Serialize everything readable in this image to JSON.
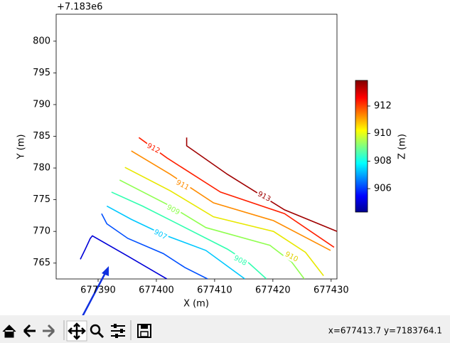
{
  "chart_data": {
    "type": "contour",
    "xlabel": "X (m)",
    "ylabel": "Y (m)",
    "y_offset": "+7.183e6",
    "xlim": [
      677382.8,
      677431.0
    ],
    "ylim": [
      762.5,
      804.25
    ],
    "xticks": [
      677390,
      677400,
      677410,
      677420,
      677430
    ],
    "yticks": [
      765,
      770,
      775,
      780,
      785,
      790,
      795,
      800
    ],
    "series": [
      {
        "color": "#0000d8",
        "x": [
          677386.95,
          677387.8,
          677388.66,
          677389.02,
          677395.1,
          677401.8
        ],
        "y": [
          765.6,
          767.2,
          768.9,
          769.3,
          766.1,
          762.5
        ]
      },
      {
        "color": "#0050ff",
        "x": [
          677390.6,
          677391.5,
          677395.1,
          677401.2,
          677404.9,
          677408.8
        ],
        "y": [
          772.8,
          771.2,
          768.9,
          766.5,
          764.3,
          762.5
        ]
      },
      {
        "color": "#00c8ff",
        "x": [
          677391.5,
          677395.7,
          677401.2,
          677408.5,
          677415.2
        ],
        "y": [
          774.0,
          771.9,
          769.5,
          767.0,
          762.5
        ]
      },
      {
        "color": "#30ffb0",
        "x": [
          677392.3,
          677397.6,
          677403.0,
          677412.2,
          677415.9,
          677418.9
        ],
        "y": [
          776.2,
          774.0,
          771.5,
          767.2,
          765.0,
          762.5
        ]
      },
      {
        "color": "#90ff50",
        "x": [
          677393.7,
          677402.4,
          677408.5,
          677419.5,
          677423.2,
          677425.4
        ],
        "y": [
          778.1,
          774.0,
          770.6,
          767.8,
          765.2,
          762.5
        ]
      },
      {
        "color": "#e8e800",
        "x": [
          677394.6,
          677402.4,
          677409.8,
          677420.1,
          677425.6,
          677428.7
        ],
        "y": [
          780.1,
          776.4,
          772.3,
          770.0,
          766.7,
          763.0
        ]
      },
      {
        "color": "#ff8c00",
        "x": [
          677395.7,
          677402.4,
          677409.8,
          677420.1,
          677429.9
        ],
        "y": [
          782.7,
          779.0,
          774.5,
          771.7,
          767.0
        ]
      },
      {
        "color": "#ff2000",
        "x": [
          677397.0,
          677401.8,
          677411.0,
          677422.0,
          677430.5
        ],
        "y": [
          784.8,
          781.6,
          776.2,
          772.8,
          767.5
        ]
      },
      {
        "color": "#a00000",
        "x": [
          677405.2,
          677405.2,
          677412.2,
          677422.0,
          677431.0
        ],
        "y": [
          784.8,
          783.5,
          779.0,
          773.4,
          770.0
        ]
      }
    ],
    "contour_labels": [
      {
        "text": "912",
        "x": 677399.5,
        "y": 783.1,
        "color": "#ff2000"
      },
      {
        "text": "911",
        "x": 677404.5,
        "y": 777.3,
        "color": "#ff8c00"
      },
      {
        "text": "909",
        "x": 677402.9,
        "y": 773.4,
        "color": "#90ff50"
      },
      {
        "text": "907",
        "x": 677400.7,
        "y": 769.5,
        "color": "#00c8ff"
      },
      {
        "text": "908",
        "x": 677414.4,
        "y": 765.4,
        "color": "#30ffb0"
      },
      {
        "text": "910",
        "x": 677423.2,
        "y": 766.0,
        "color": "#e0d000"
      },
      {
        "text": "913",
        "x": 677418.5,
        "y": 775.5,
        "color": "#a00000"
      }
    ],
    "colorbar": {
      "label": "Z (m)",
      "clim": [
        904.3,
        913.86
      ],
      "ticks": [
        906,
        908,
        910,
        912
      ]
    }
  },
  "toolbar": {
    "status": "x=677413.7 y=7183764.1"
  }
}
